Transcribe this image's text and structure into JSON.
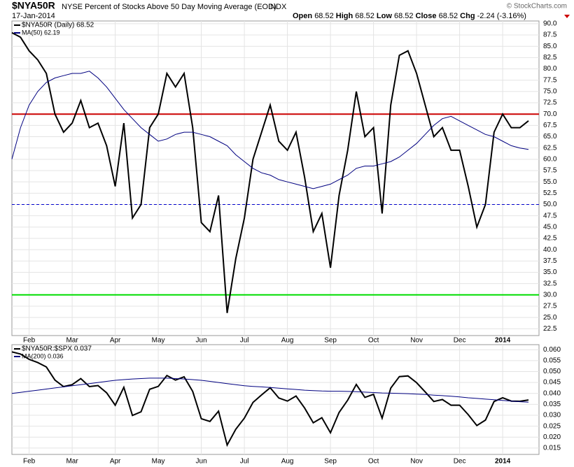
{
  "header": {
    "symbol": "$NYA50R",
    "title": "NYSE Percent of Stocks Above 50 Day Moving Average (EOD)",
    "exchange": "INDX",
    "date": "17-Jan-2014",
    "quote": [
      {
        "label": "Open",
        "value": 68.52
      },
      {
        "label": "High",
        "value": 68.52
      },
      {
        "label": "Low",
        "value": 68.52
      },
      {
        "label": "Close",
        "value": 68.52
      }
    ],
    "change_label": "Chg",
    "change": "-2.24 (-3.16%)",
    "brand": "© StockCharts.com"
  },
  "chart_data": [
    {
      "type": "line",
      "categories": [
        null,
        null,
        "Feb",
        null,
        null,
        null,
        null,
        "Mar",
        null,
        null,
        null,
        null,
        "Apr",
        null,
        null,
        null,
        null,
        "May",
        null,
        null,
        null,
        null,
        "Jun",
        null,
        null,
        null,
        null,
        "Jul",
        null,
        null,
        null,
        null,
        "Aug",
        null,
        null,
        null,
        null,
        "Sep",
        null,
        null,
        null,
        null,
        "Oct",
        null,
        null,
        null,
        null,
        "Nov",
        null,
        null,
        null,
        null,
        "Dec",
        null,
        null,
        null,
        null,
        "2014",
        null,
        null,
        null
      ],
      "series": [
        {
          "name": "$NYA50R (Daily) 68.52",
          "color": "#000000",
          "values": [
            88,
            87,
            84,
            82,
            79,
            70,
            66,
            68,
            73,
            67,
            68,
            63,
            54,
            68,
            47,
            50,
            67,
            70,
            79,
            76,
            79,
            67,
            46,
            44,
            52,
            26,
            38,
            47,
            60,
            66,
            72,
            64,
            62,
            66,
            56,
            44,
            48,
            36,
            52,
            62,
            75,
            65,
            67,
            48,
            72,
            83,
            84,
            79,
            72,
            65,
            67,
            62,
            62,
            54,
            45,
            50,
            66,
            70,
            67,
            67,
            68.52
          ]
        },
        {
          "name": "MA(50) 62.19",
          "color": "#000080",
          "values": [
            60,
            67,
            72,
            75,
            77,
            78,
            78.5,
            79,
            79,
            79.5,
            78,
            76,
            73.5,
            71,
            69,
            67,
            65.5,
            64,
            64.5,
            65.5,
            66,
            66,
            65.5,
            65,
            64,
            63,
            61,
            59.5,
            58,
            57,
            56.5,
            55.5,
            55,
            54.5,
            54,
            53.5,
            54,
            54.5,
            55.5,
            56.5,
            58,
            58.5,
            58.5,
            59,
            59.5,
            60.5,
            62,
            63.5,
            65.5,
            67.5,
            69,
            69.5,
            68.5,
            67.5,
            66.5,
            65.5,
            65,
            64,
            63,
            62.5,
            62.19
          ]
        }
      ],
      "hlines": [
        {
          "value": 70,
          "color": "#cc0000"
        },
        {
          "value": 50,
          "color": "#0000cc",
          "dashed": true
        },
        {
          "value": 30,
          "color": "#00dd00"
        }
      ],
      "ylim": [
        21,
        90.6
      ],
      "yticks": [
        22.5,
        {
          "value": 25,
          "label": "25.0"
        },
        27.5,
        {
          "value": 30,
          "label": "30.0"
        },
        32.5,
        {
          "value": 35,
          "label": "35.0"
        },
        37.5,
        {
          "value": 40,
          "label": "40.0"
        },
        42.5,
        {
          "value": 45,
          "label": "45.0"
        },
        47.5,
        {
          "value": 50,
          "label": "50.0"
        },
        52.5,
        {
          "value": 55,
          "label": "55.0"
        },
        57.5,
        {
          "value": 60,
          "label": "60.0"
        },
        62.5,
        {
          "value": 65,
          "label": "65.0"
        },
        67.5,
        {
          "value": 70,
          "label": "70.0"
        },
        72.5,
        {
          "value": 75,
          "label": "75.0"
        },
        77.5,
        {
          "value": 80,
          "label": "80.0"
        },
        82.5,
        {
          "value": 85,
          "label": "85.0"
        },
        87.5,
        {
          "value": 90,
          "label": "90.0"
        }
      ]
    },
    {
      "type": "line",
      "categories": [
        null,
        null,
        "Feb",
        null,
        null,
        null,
        null,
        "Mar",
        null,
        null,
        null,
        null,
        "Apr",
        null,
        null,
        null,
        null,
        "May",
        null,
        null,
        null,
        null,
        "Jun",
        null,
        null,
        null,
        null,
        "Jul",
        null,
        null,
        null,
        null,
        "Aug",
        null,
        null,
        null,
        null,
        "Sep",
        null,
        null,
        null,
        null,
        "Oct",
        null,
        null,
        null,
        null,
        "Nov",
        null,
        null,
        null,
        null,
        "Dec",
        null,
        null,
        null,
        null,
        "2014",
        null,
        null,
        null
      ],
      "series": [
        {
          "name": "$NYA50R:$SPX 0.037",
          "color": "#000000",
          "values": [
            0.059,
            0.058,
            0.0556,
            0.0541,
            0.0521,
            0.0461,
            0.0431,
            0.044,
            0.0468,
            0.0431,
            0.0436,
            0.0403,
            0.0346,
            0.0428,
            0.0299,
            0.0316,
            0.0419,
            0.0432,
            0.0482,
            0.0461,
            0.0476,
            0.0409,
            0.0284,
            0.0272,
            0.0319,
            0.0164,
            0.0236,
            0.0287,
            0.0359,
            0.0393,
            0.0426,
            0.0379,
            0.0365,
            0.0388,
            0.0333,
            0.0266,
            0.0289,
            0.022,
            0.0313,
            0.0369,
            0.0441,
            0.0382,
            0.0396,
            0.0287,
            0.0424,
            0.0477,
            0.048,
            0.0449,
            0.0407,
            0.0363,
            0.0372,
            0.0346,
            0.0346,
            0.0303,
            0.0253,
            0.0278,
            0.0363,
            0.038,
            0.0365,
            0.0364,
            0.037
          ]
        },
        {
          "name": "MA(200) 0.036",
          "color": "#000080",
          "values": [
            0.04,
            0.0405,
            0.041,
            0.0415,
            0.042,
            0.0425,
            0.043,
            0.0435,
            0.044,
            0.0445,
            0.045,
            0.0455,
            0.046,
            0.0463,
            0.0466,
            0.0468,
            0.047,
            0.047,
            0.047,
            0.0468,
            0.0466,
            0.0463,
            0.046,
            0.0455,
            0.045,
            0.0445,
            0.044,
            0.0435,
            0.0432,
            0.043,
            0.0427,
            0.0424,
            0.0421,
            0.0418,
            0.0415,
            0.0413,
            0.0411,
            0.041,
            0.041,
            0.0409,
            0.0408,
            0.0406,
            0.0404,
            0.0402,
            0.0401,
            0.04,
            0.0399,
            0.0397,
            0.0395,
            0.0392,
            0.039,
            0.0387,
            0.0384,
            0.038,
            0.0377,
            0.0374,
            0.0371,
            0.0368,
            0.0365,
            0.0362,
            0.036
          ]
        }
      ],
      "ylim": [
        0.0121,
        0.0623
      ],
      "yticks": [
        0.015,
        {
          "value": 0.02,
          "label": "0.020"
        },
        0.025,
        {
          "value": 0.03,
          "label": "0.030"
        },
        0.035,
        {
          "value": 0.04,
          "label": "0.040"
        },
        0.045,
        {
          "value": 0.05,
          "label": "0.050"
        },
        0.055,
        {
          "value": 0.06,
          "label": "0.060"
        }
      ]
    }
  ]
}
